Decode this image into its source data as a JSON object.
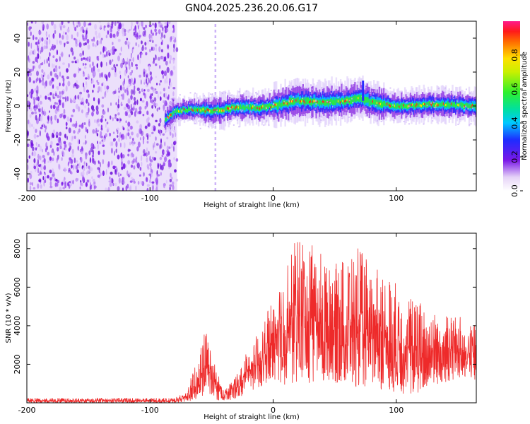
{
  "title": "GN04.2025.236.20.06.G17",
  "colors": {
    "snr_line": "#ee2a2a",
    "spectrogram_noise": "#8a2be2",
    "frame": "#000000",
    "background": "#ffffff"
  },
  "chart_data": [
    {
      "type": "heatmap",
      "name": "spectrogram",
      "xlabel": "Height of straight line (km)",
      "ylabel": "Frequency (Hz)",
      "xlim": [
        -200,
        165
      ],
      "ylim": [
        -50,
        50
      ],
      "xticks": [
        -200,
        -100,
        0,
        100
      ],
      "yticks": [
        -40,
        -20,
        0,
        20,
        40
      ],
      "xtick_labels": [
        "-200",
        "-100",
        "0",
        "100"
      ],
      "ytick_labels": [
        "-40",
        "-20",
        "0",
        "20",
        "40"
      ],
      "noise_region_x": [
        -200,
        -78
      ],
      "signal_start_x": -88,
      "signal_ridge": [
        {
          "x": -88,
          "f": -8
        },
        {
          "x": -80,
          "f": -3
        },
        {
          "x": -65,
          "f": -2
        },
        {
          "x": -50,
          "f": -3
        },
        {
          "x": -30,
          "f": -1
        },
        {
          "x": -10,
          "f": -1
        },
        {
          "x": 5,
          "f": 1
        },
        {
          "x": 20,
          "f": 3
        },
        {
          "x": 40,
          "f": 2
        },
        {
          "x": 60,
          "f": 3
        },
        {
          "x": 70,
          "f": 5
        },
        {
          "x": 80,
          "f": 2
        },
        {
          "x": 100,
          "f": 0
        },
        {
          "x": 130,
          "f": 1
        },
        {
          "x": 165,
          "f": 0
        }
      ],
      "colorbar": {
        "label": "Normalized spectral amplitude",
        "range": [
          0,
          1
        ],
        "ticks": [
          0.0,
          0.2,
          0.4,
          0.6,
          0.8
        ],
        "tick_labels": [
          "0.0",
          "0.2",
          "0.4",
          "0.6",
          "0.8"
        ]
      }
    },
    {
      "type": "line",
      "name": "snr",
      "xlabel": "Height of straight line (km)",
      "ylabel": "SNR (10 * v/v)",
      "xlim": [
        -200,
        165
      ],
      "ylim": [
        0,
        8800
      ],
      "xticks": [
        -200,
        -100,
        0,
        100
      ],
      "yticks": [
        2000,
        4000,
        6000,
        8000
      ],
      "xtick_labels": [
        "-200",
        "-100",
        "0",
        "100"
      ],
      "ytick_labels": [
        "2000",
        "4000",
        "6000",
        "8000"
      ],
      "envelope": [
        {
          "x": -200,
          "lo": 0,
          "hi": 250
        },
        {
          "x": -80,
          "lo": 0,
          "hi": 250
        },
        {
          "x": -70,
          "lo": 50,
          "hi": 600
        },
        {
          "x": -55,
          "lo": 300,
          "hi": 3800
        },
        {
          "x": -47,
          "lo": 150,
          "hi": 2000
        },
        {
          "x": -40,
          "lo": 80,
          "hi": 600
        },
        {
          "x": -30,
          "lo": 200,
          "hi": 1500
        },
        {
          "x": -20,
          "lo": 500,
          "hi": 3000
        },
        {
          "x": -8,
          "lo": 900,
          "hi": 3900
        },
        {
          "x": 0,
          "lo": 1200,
          "hi": 5800
        },
        {
          "x": 10,
          "lo": 900,
          "hi": 7000
        },
        {
          "x": 20,
          "lo": 1000,
          "hi": 8800
        },
        {
          "x": 35,
          "lo": 900,
          "hi": 8000
        },
        {
          "x": 50,
          "lo": 1000,
          "hi": 7200
        },
        {
          "x": 70,
          "lo": 800,
          "hi": 8100
        },
        {
          "x": 80,
          "lo": 800,
          "hi": 7200
        },
        {
          "x": 100,
          "lo": 500,
          "hi": 6300
        },
        {
          "x": 115,
          "lo": 400,
          "hi": 5500
        },
        {
          "x": 130,
          "lo": 900,
          "hi": 4800
        },
        {
          "x": 150,
          "lo": 1200,
          "hi": 4500
        },
        {
          "x": 165,
          "lo": 1100,
          "hi": 4200
        }
      ]
    }
  ]
}
